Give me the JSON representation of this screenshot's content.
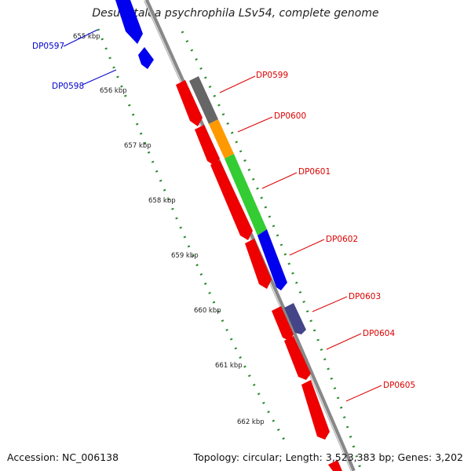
{
  "title": "Desulfotalea psychrophila LSv54, complete genome",
  "footer": {
    "accession": "Accession: NC_006138",
    "summary": "Topology: circular; Length: 3,523,383 bp; Genes: 3,202"
  },
  "ticks": [
    "655 kbp",
    "656 kbp",
    "657 kbp",
    "658 kbp",
    "659 kbp",
    "660 kbp",
    "661 kbp",
    "662 kbp"
  ],
  "genes": [
    {
      "id": "DP0597",
      "color": "#0000ee",
      "label_color": "#0000cc"
    },
    {
      "id": "DP0598",
      "color": "#0000ee",
      "label_color": "#0000cc"
    },
    {
      "id": "DP0599",
      "color": "#666666",
      "label_color": "#dd0000"
    },
    {
      "id": "DP0600",
      "color": "#ff9900",
      "label_color": "#dd0000"
    },
    {
      "id": "DP0601",
      "color": "#33cc33",
      "label_color": "#dd0000"
    },
    {
      "id": "DP0602",
      "color": "#0000ee",
      "label_color": "#dd0000"
    },
    {
      "id": "DP0603",
      "color": "#444488",
      "label_color": "#dd0000"
    },
    {
      "id": "DP0604",
      "color": "#ee0000",
      "label_color": "#dd0000"
    },
    {
      "id": "DP0605",
      "color": "#ee0000",
      "label_color": "#dd0000"
    }
  ],
  "colors": {
    "forward_strand": "#ee0000",
    "backbone": "#888888",
    "tick_mark": "#228b22"
  }
}
